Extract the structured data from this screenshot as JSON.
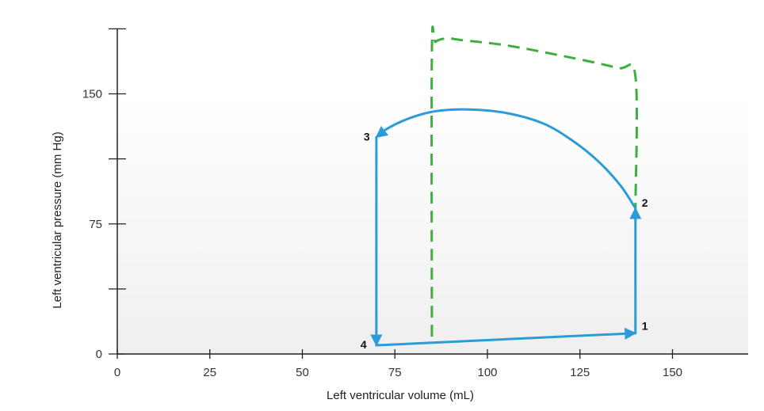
{
  "chart_data": {
    "type": "line",
    "title": "",
    "xlabel": "Left ventricular volume (mL)",
    "ylabel": "Left ventricular pressure (mm Hg)",
    "xlim": [
      0,
      170
    ],
    "ylim": [
      0,
      188
    ],
    "x_ticks": [
      0,
      25,
      50,
      75,
      100,
      125,
      150
    ],
    "y_ticks_labeled": [
      0,
      75,
      150
    ],
    "y_ticks_minor": [
      37.5,
      112.5,
      187.5
    ],
    "grid": false,
    "colors": {
      "loop": "#2a9cd6",
      "dashed": "#3fae3f",
      "axis": "#222222"
    },
    "series": [
      {
        "style": "solid-with-arrows",
        "segments": [
          {
            "from": "1",
            "to": "2",
            "points": [
              [
                140,
                12
              ],
              [
                140,
                84
              ]
            ]
          },
          {
            "from": "2",
            "to": "3",
            "points": [
              [
                140,
                84
              ],
              [
                136,
                97
              ],
              [
                130,
                111
              ],
              [
                123,
                123
              ],
              [
                115,
                133
              ],
              [
                105,
                139
              ],
              [
                95,
                141
              ],
              [
                86,
                140
              ],
              [
                79,
                136
              ],
              [
                73,
                130
              ],
              [
                70,
                125
              ]
            ]
          },
          {
            "from": "3",
            "to": "4",
            "points": [
              [
                70,
                125
              ],
              [
                70,
                5
              ]
            ]
          },
          {
            "from": "4",
            "to": "1",
            "points": [
              [
                70,
                5
              ],
              [
                140,
                12
              ]
            ]
          }
        ]
      },
      {
        "style": "dashed",
        "points": [
          [
            85,
            10
          ],
          [
            85,
            175
          ],
          [
            86,
            180
          ],
          [
            89,
            182
          ],
          [
            93,
            181
          ],
          [
            105,
            178
          ],
          [
            120,
            172
          ],
          [
            135,
            165
          ],
          [
            140,
            160
          ],
          [
            140,
            84
          ]
        ]
      }
    ],
    "point_labels": [
      {
        "text": "1",
        "x": 140,
        "y": 12
      },
      {
        "text": "2",
        "x": 140,
        "y": 84
      },
      {
        "text": "3",
        "x": 70,
        "y": 125
      },
      {
        "text": "4",
        "x": 70,
        "y": 5
      }
    ]
  }
}
